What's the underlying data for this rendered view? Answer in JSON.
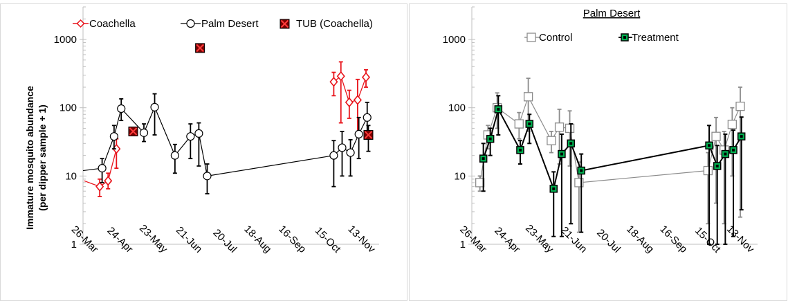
{
  "chart_data": [
    {
      "type": "scatter",
      "panel": "left",
      "title": "",
      "ylabel": "Immature mosquito abundance (per dipper sample + 1)",
      "ylabel_lines": [
        "Immature mosquito abundance",
        "(per dipper sample + 1)"
      ],
      "xlabel": "",
      "yscale": "log",
      "ylim": [
        1,
        3000
      ],
      "y_ticks": [
        1,
        10,
        100,
        1000
      ],
      "y_tick_labels": [
        "1",
        "10",
        "100",
        "1000"
      ],
      "xlim": [
        "2019-03-19",
        "2019-11-22"
      ],
      "x_ticks": [
        "2019-03-26",
        "2019-04-24",
        "2019-05-23",
        "2019-06-21",
        "2019-07-20",
        "2019-08-18",
        "2019-09-16",
        "2019-10-15",
        "2019-11-13"
      ],
      "x_tick_labels": [
        "26-Mar",
        "24-Apr",
        "23-May",
        "21-Jun",
        "20-Jul",
        "18-Aug",
        "16-Sep",
        "15-Oct",
        "13-Nov"
      ],
      "legend_position": "top",
      "series": [
        {
          "name": "Coachella",
          "color": "#e8141b",
          "marker": "diamond",
          "segments": [
            [
              {
                "x": "2019-03-20",
                "y": 8.5
              },
              {
                "x": "2019-04-02",
                "y": 7,
                "lo": 5,
                "hi": 9
              },
              {
                "x": "2019-04-09",
                "y": 8.5,
                "lo": 6.5,
                "hi": 11
              },
              {
                "x": "2019-04-16",
                "y": 25,
                "lo": 13,
                "hi": 35
              }
            ],
            [
              {
                "x": "2019-10-15",
                "y": 240,
                "lo": 150,
                "hi": 330
              },
              {
                "x": "2019-10-21",
                "y": 290,
                "lo": 60,
                "hi": 470
              },
              {
                "x": "2019-10-28",
                "y": 120,
                "lo": 70,
                "hi": 180
              },
              {
                "x": "2019-11-04",
                "y": 130,
                "lo": 40,
                "hi": 260
              },
              {
                "x": "2019-11-11",
                "y": 280,
                "lo": 200,
                "hi": 360
              }
            ]
          ]
        },
        {
          "name": "Palm Desert",
          "color": "#000000",
          "marker": "circle",
          "segments": [
            [
              {
                "x": "2019-03-19",
                "y": 12
              },
              {
                "x": "2019-04-04",
                "y": 13,
                "lo": 8,
                "hi": 18
              },
              {
                "x": "2019-04-14",
                "y": 38,
                "lo": 25,
                "hi": 55
              },
              {
                "x": "2019-04-20",
                "y": 97,
                "lo": 65,
                "hi": 135
              },
              {
                "x": "2019-05-09",
                "y": 43,
                "lo": 32,
                "hi": 58
              },
              {
                "x": "2019-05-18",
                "y": 102,
                "lo": 40,
                "hi": 160
              },
              {
                "x": "2019-06-04",
                "y": 20,
                "lo": 11,
                "hi": 29
              },
              {
                "x": "2019-06-17",
                "y": 38,
                "lo": 18,
                "hi": 58
              },
              {
                "x": "2019-06-24",
                "y": 42,
                "lo": 14,
                "hi": 60
              },
              {
                "x": "2019-07-01",
                "y": 10,
                "lo": 5.5,
                "hi": 15
              },
              {
                "x": "2019-10-15",
                "y": 20,
                "lo": 7,
                "hi": 33
              },
              {
                "x": "2019-10-22",
                "y": 26,
                "lo": 10,
                "hi": 45
              },
              {
                "x": "2019-10-29",
                "y": 22,
                "lo": 10,
                "hi": 34
              },
              {
                "x": "2019-11-05",
                "y": 41,
                "lo": 18,
                "hi": 72
              },
              {
                "x": "2019-11-12",
                "y": 72,
                "lo": 35,
                "hi": 120
              }
            ]
          ]
        },
        {
          "name": "TUB (Coachella)",
          "color": "#7a0000",
          "marker": "x-square",
          "segments": [
            [
              {
                "x": "2019-04-30",
                "y": 45
              },
              {
                "x": "2019-06-25",
                "y": 750
              },
              {
                "x": "2019-11-13",
                "y": 40,
                "lo": 23,
                "hi": 55
              }
            ]
          ]
        }
      ]
    },
    {
      "type": "scatter",
      "panel": "right",
      "title": "Palm Desert",
      "ylabel": "",
      "xlabel": "",
      "yscale": "log",
      "ylim": [
        1,
        3000
      ],
      "y_ticks": [
        1,
        10,
        100,
        1000
      ],
      "y_tick_labels": [
        "1",
        "10",
        "100",
        "1000"
      ],
      "xlim": [
        "2019-03-19",
        "2019-11-22"
      ],
      "x_ticks": [
        "2019-03-26",
        "2019-04-24",
        "2019-05-23",
        "2019-06-21",
        "2019-07-20",
        "2019-08-18",
        "2019-09-16",
        "2019-10-15",
        "2019-11-13"
      ],
      "x_tick_labels": [
        "26-Mar",
        "24-Apr",
        "23-May",
        "21-Jun",
        "20-Jul",
        "18-Aug",
        "16-Sep",
        "15-Oct",
        "13-Nov"
      ],
      "legend_position": "top",
      "series": [
        {
          "name": "Control",
          "color": "#7f7f7f",
          "marker": "open-square",
          "segments": [
            [
              {
                "x": "2019-03-26",
                "y": 8,
                "lo": 6,
                "hi": 10
              },
              {
                "x": "2019-04-02",
                "y": 40,
                "lo": 25,
                "hi": 55
              },
              {
                "x": "2019-04-10",
                "y": 100,
                "lo": 50,
                "hi": 165
              },
              {
                "x": "2019-04-29",
                "y": 58,
                "lo": 35,
                "hi": 85
              },
              {
                "x": "2019-05-07",
                "y": 145,
                "lo": 45,
                "hi": 270
              },
              {
                "x": "2019-05-27",
                "y": 33,
                "lo": 22,
                "hi": 45
              },
              {
                "x": "2019-06-03",
                "y": 52,
                "lo": 15,
                "hi": 95
              },
              {
                "x": "2019-06-12",
                "y": 50,
                "lo": 14,
                "hi": 90
              },
              {
                "x": "2019-06-20",
                "y": 8,
                "lo": 1.5,
                "hi": 16
              },
              {
                "x": "2019-10-10",
                "y": 12,
                "lo": 2,
                "hi": 22
              },
              {
                "x": "2019-10-17",
                "y": 38,
                "lo": 4,
                "hi": 72
              },
              {
                "x": "2019-10-24",
                "y": 24,
                "lo": 2,
                "hi": 45
              },
              {
                "x": "2019-10-31",
                "y": 57,
                "lo": 10,
                "hi": 100
              },
              {
                "x": "2019-11-07",
                "y": 105,
                "lo": 2.5,
                "hi": 200
              }
            ]
          ]
        },
        {
          "name": "Treatment",
          "color": "#000000",
          "marker": "filled-square",
          "segments": [
            [
              {
                "x": "2019-03-29",
                "y": 18,
                "lo": 6,
                "hi": 30
              },
              {
                "x": "2019-04-04",
                "y": 35,
                "lo": 20,
                "hi": 50
              },
              {
                "x": "2019-04-11",
                "y": 95,
                "lo": 40,
                "hi": 150
              },
              {
                "x": "2019-04-30",
                "y": 24,
                "lo": 15,
                "hi": 33
              },
              {
                "x": "2019-05-08",
                "y": 58,
                "lo": 30,
                "hi": 80
              },
              {
                "x": "2019-05-29",
                "y": 6.5,
                "lo": 1.3,
                "hi": 11.5
              },
              {
                "x": "2019-06-05",
                "y": 21,
                "lo": 1.3,
                "hi": 41
              },
              {
                "x": "2019-06-13",
                "y": 30,
                "lo": 2,
                "hi": 58
              },
              {
                "x": "2019-06-22",
                "y": 12,
                "lo": 1.5,
                "hi": 21
              },
              {
                "x": "2019-10-11",
                "y": 28,
                "lo": 1,
                "hi": 55
              },
              {
                "x": "2019-10-18",
                "y": 14,
                "lo": 1,
                "hi": 28
              },
              {
                "x": "2019-10-25",
                "y": 21,
                "lo": 1,
                "hi": 41
              },
              {
                "x": "2019-11-01",
                "y": 24,
                "lo": 1.3,
                "hi": 47
              },
              {
                "x": "2019-11-08",
                "y": 38,
                "lo": 3.2,
                "hi": 73
              }
            ]
          ]
        }
      ]
    }
  ]
}
